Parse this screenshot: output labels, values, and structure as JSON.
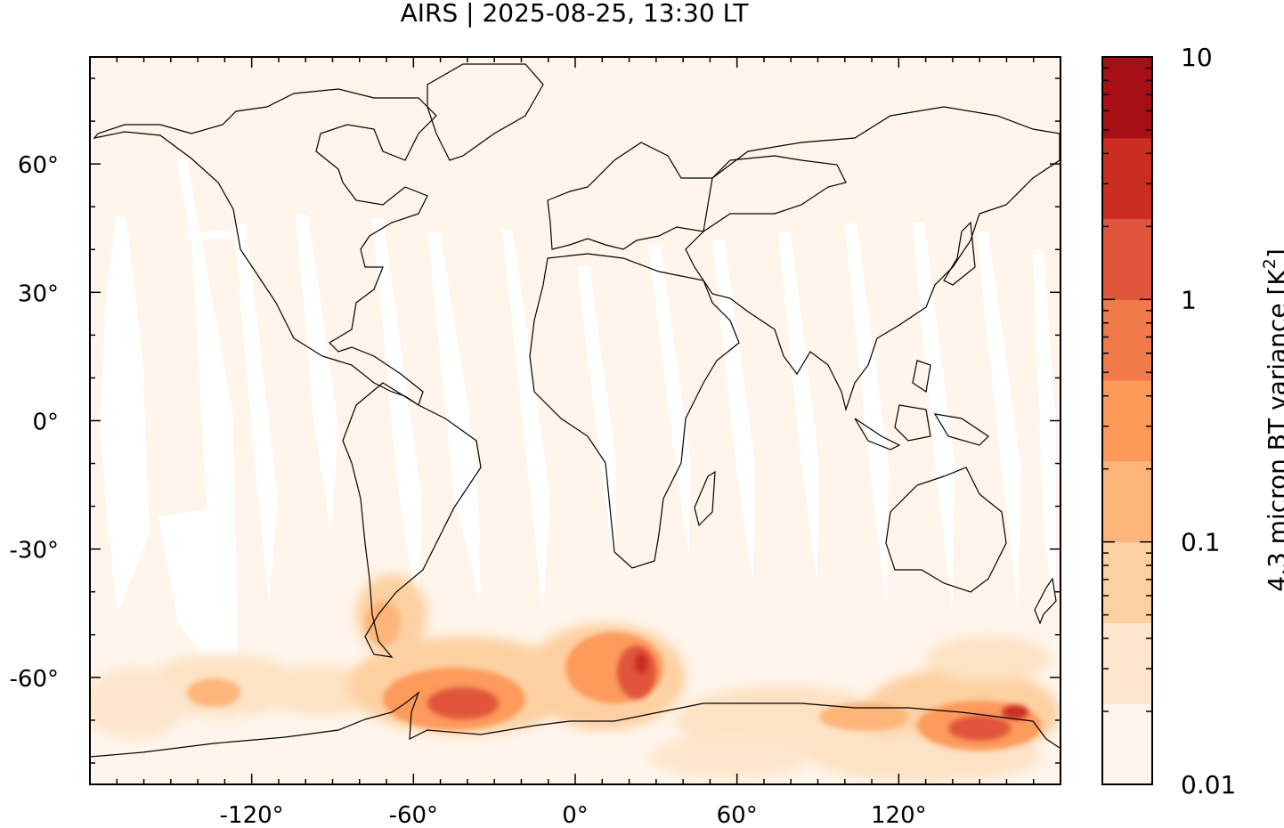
{
  "title": "AIRS | 2025-08-25, 13:30 LT",
  "colorbar": {
    "label": "4.3 micron BT variance [K",
    "label_sup": "2",
    "label_end": "]",
    "tick_labels": [
      "10",
      "1",
      "0.1",
      "0.01"
    ],
    "levels": [
      0.01,
      0.02,
      0.05,
      0.1,
      0.2,
      0.5,
      1,
      2,
      5,
      10
    ],
    "colors": [
      "#fff5eb",
      "#fee6ce",
      "#fdd0a2",
      "#fdb57a",
      "#fd9a5b",
      "#f17a4b",
      "#e0553b",
      "#cb2d20",
      "#a50f15"
    ]
  },
  "map": {
    "projection": "equirectangular",
    "lon_range": [
      -180,
      180
    ],
    "lat_range": [
      -85,
      85
    ],
    "background_color": "#fff5eb",
    "xtick_labels": [
      "-120°",
      "-60°",
      "0°",
      "60°",
      "120°"
    ],
    "ytick_labels": [
      "60°",
      "30°",
      "0°",
      "-30°",
      "-60°"
    ]
  }
}
